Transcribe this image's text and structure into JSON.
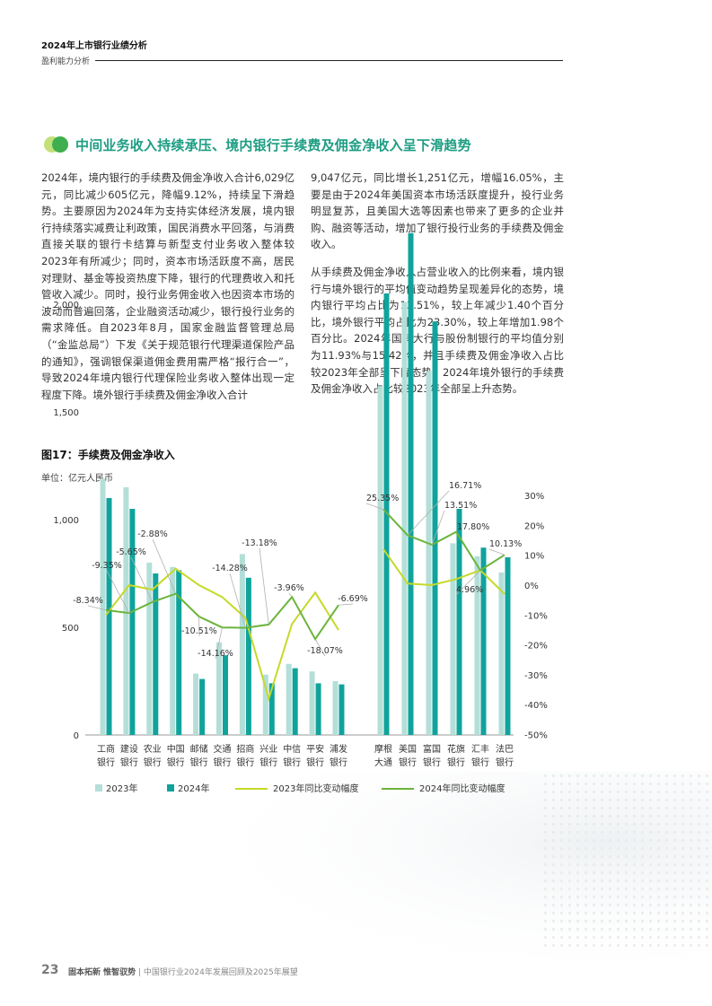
{
  "header": {
    "title": "2024年上市银行业绩分析",
    "subtitle": "盈利能力分析"
  },
  "section": {
    "title": "中间业务收入持续承压、境内银行手续费及佣金净收入呈下滑趋势"
  },
  "body": {
    "left_paragraph": "2024年，境内银行的手续费及佣金净收入合计6,029亿元，同比减少605亿元，降幅9.12%，持续呈下滑趋势。主要原因为2024年为支持实体经济发展，境内银行持续落实减费让利政策，国民消费水平回落，与消费直接关联的银行卡结算与新型支付业务收入整体较2023年有所减少；同时，资本市场活跃度不高，居民对理财、基金等投资热度下降，银行的代理费收入和托管收入减少。同时，投行业务佣金收入也因资本市场的波动而普遍回落，企业融资活动减少，银行投行业务的需求降低。自2023年8月，国家金融监督管理总局（“金监总局”）下发《关于规范银行代理渠道保险产品的通知》，强调银保渠道佣金费用需严格“报行合一”，导致2024年境内银行代理保险业务收入整体出现一定程度下降。境外银行手续费及佣金净收入合计",
    "right_paragraph_1": "9,047亿元，同比增长1,251亿元，增幅16.05%，主要是由于2024年美国资本市场活跃度提升，投行业务明显复苏，且美国大选等因素也带来了更多的企业并购、融资等活动，增加了银行投行业务的手续费及佣金收入。",
    "right_paragraph_2": "从手续费及佣金净收入占营业收入的比例来看，境内银行与境外银行的平均值变动趋势呈现差异化的态势，境内银行平均占比为13.51%，较上年减少1.40个百分比，境外银行平均占比为23.30%，较上年增加1.98个百分比。2024年国有大行与股份制银行的平均值分别为11.93%与15.42%，并且手续费及佣金净收入占比较2023年全部呈下降态势。2024年境外银行的手续费及佣金净收入占比较2023年全部呈上升态势。"
  },
  "figure": {
    "title": "图17：手续费及佣金净收入",
    "unit": "单位：亿元人民币"
  },
  "colors": {
    "bar_2023": "#b3dfd8",
    "bar_2024": "#10a39c",
    "line_2023": "#c6d92a",
    "line_2024": "#6bb43c",
    "accent": "#1c9d83"
  },
  "chart_data": {
    "type": "bar",
    "categories": [
      [
        "工商",
        "银行"
      ],
      [
        "建设",
        "银行"
      ],
      [
        "农业",
        "银行"
      ],
      [
        "中国",
        "银行"
      ],
      [
        "邮储",
        "银行"
      ],
      [
        "交通",
        "银行"
      ],
      [
        "招商",
        "银行"
      ],
      [
        "兴业",
        "银行"
      ],
      [
        "中信",
        "银行"
      ],
      [
        "平安",
        "银行"
      ],
      [
        "浦发",
        "银行"
      ],
      [
        "摩根",
        "大通"
      ],
      [
        "美国",
        "银行"
      ],
      [
        "富国",
        "银行"
      ],
      [
        "花旗",
        "银行"
      ],
      [
        "汇丰",
        "银行"
      ],
      [
        "法巴",
        "银行"
      ]
    ],
    "series": [
      {
        "name": "2023年",
        "kind": "bar",
        "axis": "left",
        "values": [
          1190,
          1150,
          800,
          780,
          285,
          430,
          840,
          280,
          330,
          295,
          250,
          1620,
          2010,
          1690,
          890,
          830,
          755
        ]
      },
      {
        "name": "2024年",
        "kind": "bar",
        "axis": "left",
        "values": [
          1100,
          1050,
          750,
          765,
          260,
          370,
          730,
          240,
          310,
          240,
          235,
          2050,
          2330,
          1920,
          1050,
          870,
          825
        ]
      },
      {
        "name": "2023年同比变动幅度",
        "kind": "line",
        "axis": "right",
        "unit": "%",
        "values": [
          -10,
          0,
          -1.5,
          5.5,
          0,
          -4,
          -11,
          -38,
          -13,
          -2.5,
          -15,
          12,
          0.5,
          0,
          2,
          5,
          -3
        ]
      },
      {
        "name": "2024年同比变动幅度",
        "kind": "line",
        "axis": "right",
        "unit": "%",
        "values": [
          -8.34,
          -9.35,
          -5.65,
          -2.88,
          -10.51,
          -14.16,
          -14.28,
          -13.18,
          -3.96,
          -18.07,
          -6.69,
          25.35,
          16.71,
          13.51,
          17.8,
          4.96,
          10.13
        ]
      }
    ],
    "data_labels": [
      "-8.34%",
      "-9.35%",
      "-5.65%",
      "-2.88%",
      "-10.51%",
      "-14.16%",
      "-14.28%",
      "-13.18%",
      "-3.96%",
      "-18.07%",
      "-6.69%",
      "25.35%",
      "16.71%",
      "13.51%",
      "17.80%",
      "4.96%",
      "10.13%"
    ],
    "y_left": {
      "ticks": [
        "0",
        "500",
        "1,000",
        "1,500",
        "2,000"
      ],
      "min": 0,
      "max": 2400
    },
    "y_right": {
      "ticks": [
        "-50%",
        "-40%",
        "-30%",
        "-20%",
        "-10%",
        "0%",
        "10%",
        "20%",
        "30%"
      ],
      "min": -50,
      "max": 30
    },
    "legend_placement": "bottom",
    "grid": false
  },
  "footer": {
    "page_number": "23",
    "slogan": "固本拓新 惟智驭势",
    "report": "中国银行业2024年发展回顾及2025年展望"
  }
}
